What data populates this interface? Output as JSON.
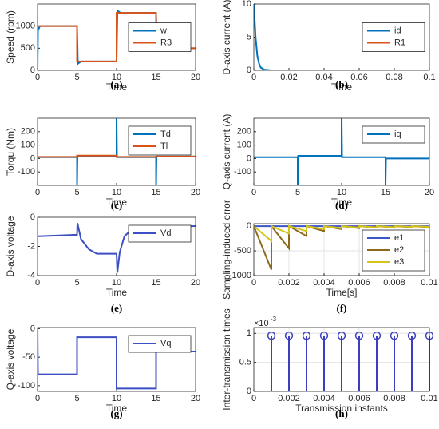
{
  "chart_data": [
    {
      "type": "line",
      "ylabel": "Speed (rpm)",
      "xlabel": "Time",
      "caption": "(a)",
      "xlim": [
        0,
        20
      ],
      "xticks": [
        0,
        5,
        10,
        15,
        20
      ],
      "ylim": [
        0,
        1500
      ],
      "yticks": [
        0,
        500,
        1000
      ],
      "legend": "east",
      "grid": false,
      "series": [
        {
          "name": "w",
          "color": "#0072bd",
          "x": [
            0,
            0.05,
            0.3,
            5,
            5.1,
            5.5,
            10,
            10.1,
            10.5,
            15,
            15.1,
            15.5,
            20
          ],
          "values": [
            0,
            900,
            1000,
            1000,
            150,
            200,
            200,
            1350,
            1300,
            1300,
            450,
            500,
            500
          ]
        },
        {
          "name": "R3",
          "color": "#d95319",
          "x": [
            0,
            5,
            5,
            10,
            10,
            15,
            15,
            20
          ],
          "values": [
            1000,
            1000,
            200,
            200,
            1300,
            1300,
            500,
            500
          ]
        }
      ]
    },
    {
      "type": "line",
      "ylabel": "D-axis current (A)",
      "xlabel": "Time",
      "caption": "(b)",
      "xlim": [
        0,
        0.1
      ],
      "xticks": [
        0,
        0.02,
        0.04,
        0.06,
        0.08,
        0.1
      ],
      "ylim": [
        0,
        10
      ],
      "yticks": [
        0,
        5,
        10
      ],
      "legend": "east",
      "grid": false,
      "series": [
        {
          "name": "id",
          "color": "#0072bd",
          "x": [
            0,
            0.001,
            0.002,
            0.003,
            0.004,
            0.006,
            0.01,
            0.1
          ],
          "values": [
            10,
            5,
            2.2,
            1,
            0.4,
            0.1,
            0,
            0
          ]
        },
        {
          "name": "R1",
          "color": "#d95319",
          "x": [
            0,
            0.1
          ],
          "values": [
            0,
            0
          ]
        }
      ]
    },
    {
      "type": "line",
      "ylabel": "Torqu (Nm)",
      "xlabel": "Time",
      "caption": "(c)",
      "xlim": [
        0,
        20
      ],
      "xticks": [
        0,
        5,
        10,
        15,
        20
      ],
      "ylim": [
        -200,
        300
      ],
      "yticks": [
        -100,
        0,
        100,
        200
      ],
      "legend": "northeast",
      "grid": false,
      "series": [
        {
          "name": "Td",
          "color": "#0072bd",
          "x": [
            0,
            5,
            5,
            5.05,
            10,
            10,
            10.05,
            15,
            15,
            15.05,
            20
          ],
          "values": [
            10,
            10,
            -200,
            20,
            20,
            300,
            10,
            10,
            -200,
            15,
            15
          ]
        },
        {
          "name": "Tl",
          "color": "#d95319",
          "x": [
            0,
            5,
            5,
            10,
            10,
            15,
            15,
            20
          ],
          "values": [
            12,
            12,
            22,
            22,
            12,
            12,
            15,
            15
          ]
        }
      ]
    },
    {
      "type": "line",
      "ylabel": "Q-axis current (A)",
      "xlabel": "Time",
      "caption": "(d)",
      "xlim": [
        0,
        20
      ],
      "xticks": [
        0,
        5,
        10,
        15,
        20
      ],
      "ylim": [
        -200,
        300
      ],
      "yticks": [
        -100,
        0,
        100,
        200
      ],
      "legend": "northeast",
      "grid": false,
      "series": [
        {
          "name": "iq",
          "color": "#0072bd",
          "x": [
            0,
            5,
            5,
            5.05,
            10,
            10,
            10.05,
            15,
            15,
            15.05,
            20
          ],
          "values": [
            10,
            10,
            -200,
            20,
            20,
            300,
            10,
            10,
            -200,
            0,
            0
          ]
        }
      ]
    },
    {
      "type": "line",
      "ylabel": "D-axis voltage",
      "xlabel": "Time",
      "caption": "(e)",
      "xlim": [
        0,
        20
      ],
      "xticks": [
        0,
        5,
        10,
        15,
        20
      ],
      "ylim": [
        -4,
        0
      ],
      "yticks": [
        -4,
        -2,
        0
      ],
      "legend": "northeast",
      "grid": false,
      "series": [
        {
          "name": "Vd",
          "color": "#3d4fc4",
          "x": [
            0,
            0.1,
            5,
            5.05,
            5.5,
            6.5,
            7.5,
            10,
            10.1,
            10.4,
            11,
            12,
            15,
            20
          ],
          "values": [
            -1.3,
            -1.3,
            -1.2,
            -0.4,
            -1.5,
            -2.2,
            -2.5,
            -2.5,
            -3.8,
            -2.4,
            -1.3,
            -0.8,
            -0.7,
            -0.6
          ]
        }
      ]
    },
    {
      "type": "line",
      "ylabel": "Sampling-induced error",
      "xlabel": "Time[s]",
      "caption": "(f)",
      "xlim": [
        0,
        0.01
      ],
      "xticks": [
        0,
        0.002,
        0.004,
        0.006,
        0.008,
        0.01
      ],
      "ylim": [
        -1000,
        50
      ],
      "yticks": [
        -1000,
        -500,
        0
      ],
      "legend": "southeast",
      "grid": true,
      "series": [
        {
          "name": "e1",
          "color": "#3c55c8",
          "x": [
            0,
            0.01
          ],
          "values": [
            0,
            0
          ]
        },
        {
          "name": "e2",
          "color": "#8c6a1d",
          "x": [
            0,
            0.001,
            0.001,
            0.002,
            0.002,
            0.003,
            0.003,
            0.004,
            0.004,
            0.005,
            0.005,
            0.006,
            0.006,
            0.007,
            0.007,
            0.008,
            0.008,
            0.009,
            0.009,
            0.01
          ],
          "values": [
            0,
            -880,
            0,
            -450,
            0,
            -200,
            0,
            -100,
            0,
            -60,
            0,
            -40,
            0,
            -30,
            0,
            -25,
            0,
            -20,
            0,
            -20
          ]
        },
        {
          "name": "e3",
          "color": "#d4c41a",
          "x": [
            0,
            0.001,
            0.001,
            0.002,
            0.002,
            0.003,
            0.003,
            0.004,
            0.004,
            0.005,
            0.005,
            0.006,
            0.006,
            0.007,
            0.007,
            0.008,
            0.008,
            0.009,
            0.009,
            0.01
          ],
          "values": [
            0,
            -300,
            0,
            -150,
            0,
            -100,
            0,
            -60,
            0,
            -40,
            0,
            -30,
            0,
            -25,
            0,
            -20,
            0,
            -15,
            0,
            -15
          ]
        }
      ]
    },
    {
      "type": "line",
      "ylabel": "Q-axis voltage",
      "xlabel": "Time",
      "caption": "(g)",
      "xlim": [
        0,
        20
      ],
      "xticks": [
        0,
        5,
        10,
        15,
        20
      ],
      "ylim": [
        -110,
        2
      ],
      "yticks": [
        -100,
        -50,
        0
      ],
      "legend": "northeast",
      "grid": false,
      "series": [
        {
          "name": "Vq",
          "color": "#3d4fc4",
          "x": [
            0,
            0.05,
            5,
            5,
            10,
            10,
            15,
            15,
            20
          ],
          "values": [
            0,
            -80,
            -80,
            -15,
            -15,
            -105,
            -105,
            -40,
            -40
          ]
        }
      ]
    },
    {
      "type": "stem",
      "ylabel": "Inter-transmission times",
      "xlabel": "Transmission instants",
      "caption": "(h)",
      "y_multiplier": "×10",
      "y_exponent": "-3",
      "xlim": [
        0,
        0.01
      ],
      "xticks": [
        0,
        0.002,
        0.004,
        0.006,
        0.008,
        0.01
      ],
      "ylim": [
        0,
        1.1
      ],
      "yticks": [
        0,
        0.5,
        1
      ],
      "grid": true,
      "series": [
        {
          "color": "#3b3fbf",
          "x": [
            0.001,
            0.002,
            0.003,
            0.004,
            0.005,
            0.006,
            0.007,
            0.008,
            0.009,
            0.01
          ],
          "values": [
            0.96,
            0.96,
            0.96,
            0.96,
            0.96,
            0.96,
            0.96,
            0.96,
            0.96,
            0.96
          ]
        }
      ]
    }
  ]
}
